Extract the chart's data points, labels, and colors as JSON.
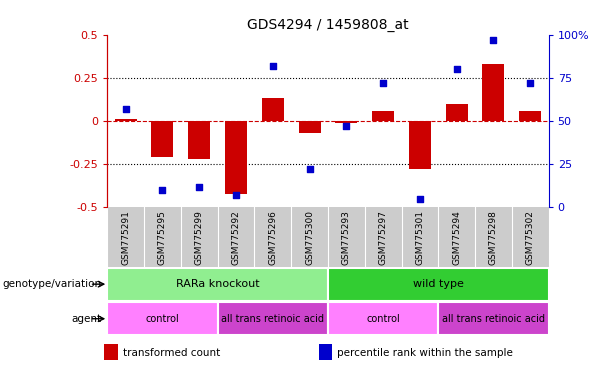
{
  "title": "GDS4294 / 1459808_at",
  "samples": [
    "GSM775291",
    "GSM775295",
    "GSM775299",
    "GSM775292",
    "GSM775296",
    "GSM775300",
    "GSM775293",
    "GSM775297",
    "GSM775301",
    "GSM775294",
    "GSM775298",
    "GSM775302"
  ],
  "bar_values": [
    0.01,
    -0.21,
    -0.22,
    -0.42,
    0.13,
    -0.07,
    -0.01,
    0.06,
    -0.28,
    0.1,
    0.33,
    0.06
  ],
  "scatter_values": [
    57,
    10,
    12,
    7,
    82,
    22,
    47,
    72,
    5,
    80,
    97,
    72
  ],
  "ylim_left": [
    -0.5,
    0.5
  ],
  "ylim_right": [
    0,
    100
  ],
  "yticks_left": [
    -0.5,
    -0.25,
    0,
    0.25,
    0.5
  ],
  "yticks_right": [
    0,
    25,
    50,
    75,
    100
  ],
  "bar_color": "#CC0000",
  "scatter_color": "#0000CC",
  "hline_color": "#CC0000",
  "dotted_line_color": "#000000",
  "groups": [
    {
      "label": "RARa knockout",
      "start": 0,
      "end": 6,
      "color": "#90EE90"
    },
    {
      "label": "wild type",
      "start": 6,
      "end": 12,
      "color": "#32CD32"
    }
  ],
  "agents": [
    {
      "label": "control",
      "start": 0,
      "end": 3,
      "color": "#FF80FF"
    },
    {
      "label": "all trans retinoic acid",
      "start": 3,
      "end": 6,
      "color": "#CC44CC"
    },
    {
      "label": "control",
      "start": 6,
      "end": 9,
      "color": "#FF80FF"
    },
    {
      "label": "all trans retinoic acid",
      "start": 9,
      "end": 12,
      "color": "#CC44CC"
    }
  ],
  "row_labels": [
    "genotype/variation",
    "agent"
  ],
  "legend_items": [
    {
      "color": "#CC0000",
      "label": "transformed count"
    },
    {
      "color": "#0000CC",
      "label": "percentile rank within the sample"
    }
  ],
  "xtick_bg_color": "#CCCCCC",
  "background_color": "#FFFFFF",
  "plot_bg_color": "#FFFFFF"
}
